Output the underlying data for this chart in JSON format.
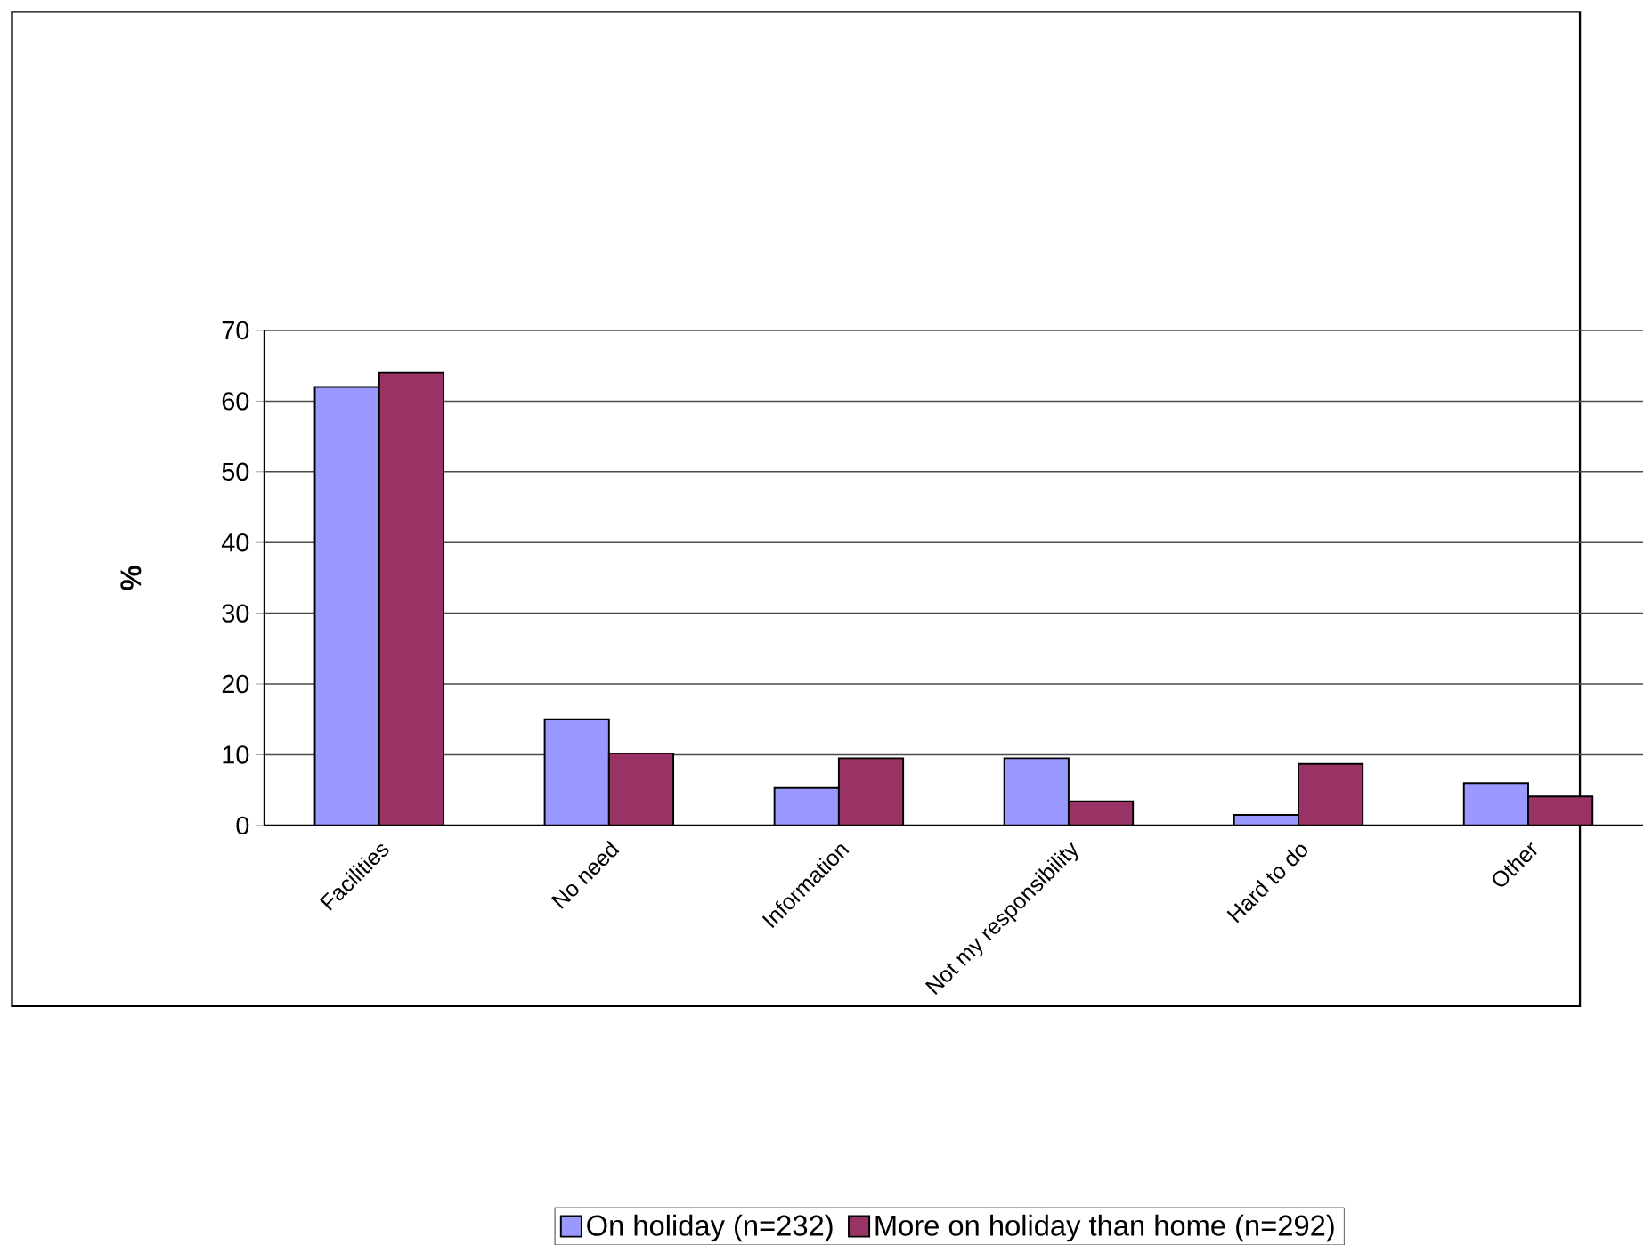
{
  "chart_data": {
    "type": "bar",
    "ylabel": "%",
    "categories": [
      "Facilities",
      "No need",
      "Information",
      "Not my responsibility",
      "Hard to do",
      "Other"
    ],
    "series": [
      {
        "name": "On holiday (n=232)",
        "color": "#9999ff",
        "values": [
          62,
          15,
          5.3,
          9.5,
          1.5,
          6
        ]
      },
      {
        "name": "More on holiday than home (n=292)",
        "color": "#993366",
        "values": [
          64,
          10.2,
          9.5,
          3.4,
          8.7,
          4.1
        ]
      }
    ],
    "ylim": [
      0,
      70
    ],
    "yticks": [
      0,
      10,
      20,
      30,
      40,
      50,
      60,
      70
    ],
    "grid": "y",
    "legend": "bottom"
  }
}
